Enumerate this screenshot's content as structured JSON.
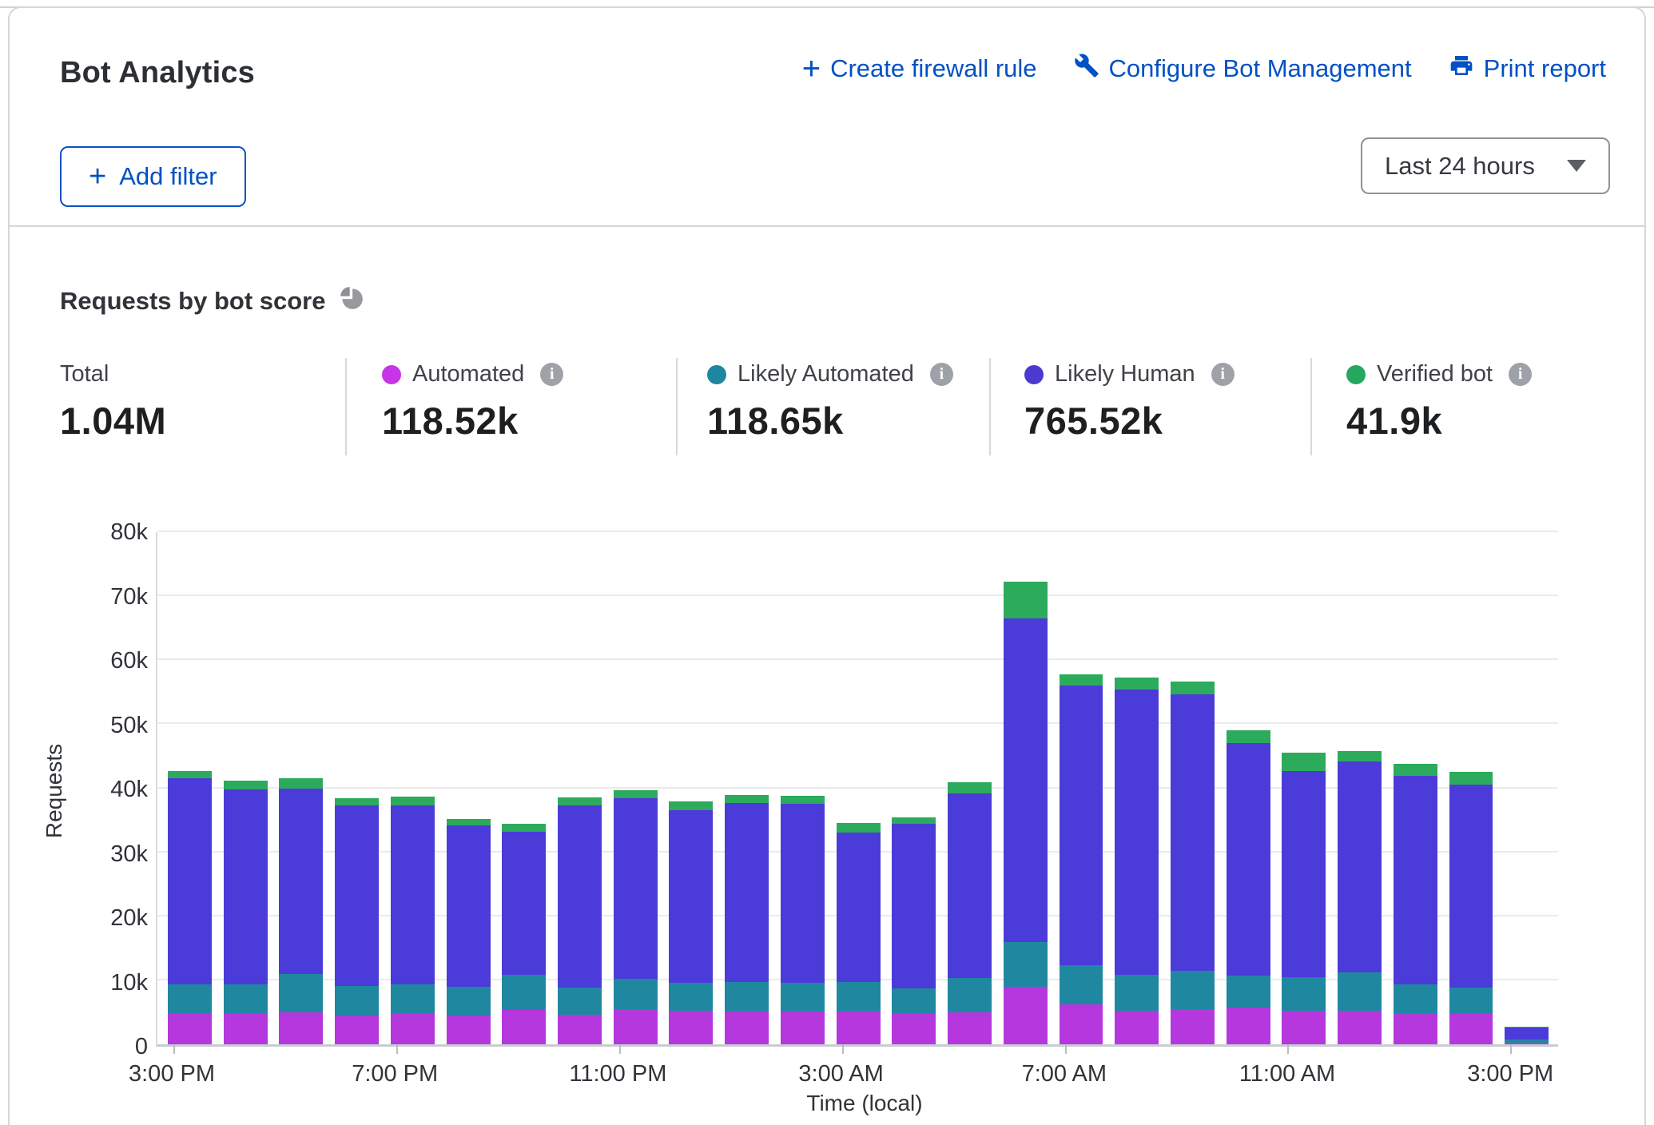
{
  "header": {
    "title": "Bot Analytics",
    "actions": [
      {
        "label": "Create firewall rule",
        "icon": "plus-icon"
      },
      {
        "label": "Configure Bot Management",
        "icon": "wrench-icon"
      },
      {
        "label": "Print report",
        "icon": "printer-icon"
      }
    ],
    "add_filter_label": "Add filter",
    "time_range_value": "Last 24 hours",
    "link_color": "#0051c3"
  },
  "section": {
    "title": "Requests by bot score",
    "icon": "pie-chart-icon"
  },
  "stats": {
    "total": {
      "label": "Total",
      "value": "1.04M"
    },
    "items": [
      {
        "label": "Automated",
        "value": "118.52k",
        "color": "#c835e8"
      },
      {
        "label": "Likely Automated",
        "value": "118.65k",
        "color": "#1d87a2"
      },
      {
        "label": "Likely Human",
        "value": "765.52k",
        "color": "#4a3ad0"
      },
      {
        "label": "Verified bot",
        "value": "41.9k",
        "color": "#24a85e"
      }
    ]
  },
  "chart_data": {
    "type": "bar",
    "stacked": true,
    "title": "Requests by bot score",
    "xlabel": "Time (local)",
    "ylabel": "Requests",
    "ylim": [
      0,
      80000
    ],
    "grid": true,
    "y_ticks": [
      "0",
      "10k",
      "20k",
      "30k",
      "40k",
      "50k",
      "60k",
      "70k",
      "80k"
    ],
    "categories": [
      "3:00 PM",
      "4:00 PM",
      "5:00 PM",
      "6:00 PM",
      "7:00 PM",
      "8:00 PM",
      "9:00 PM",
      "10:00 PM",
      "11:00 PM",
      "12:00 AM",
      "1:00 AM",
      "2:00 AM",
      "3:00 AM",
      "4:00 AM",
      "5:00 AM",
      "6:00 AM",
      "7:00 AM",
      "8:00 AM",
      "9:00 AM",
      "10:00 AM",
      "11:00 AM",
      "12:00 PM",
      "1:00 PM",
      "2:00 PM",
      "3:00 PM"
    ],
    "x_tick_indices": [
      0,
      4,
      8,
      12,
      16,
      20,
      24
    ],
    "x_tick_labels": [
      "3:00 PM",
      "7:00 PM",
      "11:00 PM",
      "3:00 AM",
      "7:00 AM",
      "11:00 AM",
      "3:00 PM"
    ],
    "unit": "k requests",
    "series": [
      {
        "name": "Automated",
        "color": "#b438dd",
        "values": [
          4.8,
          4.7,
          5.0,
          4.5,
          4.7,
          4.5,
          5.4,
          4.6,
          5.5,
          5.3,
          5.1,
          5.1,
          5.1,
          4.8,
          5.0,
          9.0,
          6.3,
          5.3,
          5.5,
          5.7,
          5.3,
          5.3,
          4.9,
          4.8,
          0.3
        ]
      },
      {
        "name": "Likely Automated",
        "color": "#1f87a0",
        "values": [
          4.5,
          4.6,
          6.0,
          4.6,
          4.6,
          4.5,
          5.4,
          4.3,
          4.7,
          4.3,
          4.6,
          4.5,
          4.6,
          3.9,
          5.4,
          7.0,
          6.0,
          5.6,
          6.0,
          5.0,
          5.2,
          5.9,
          4.5,
          4.1,
          0.4
        ]
      },
      {
        "name": "Likely Human",
        "color": "#4b3bd8",
        "values": [
          32.2,
          30.5,
          29.0,
          28.2,
          28.0,
          25.2,
          22.4,
          28.4,
          28.3,
          27.0,
          28.0,
          28.0,
          23.4,
          25.7,
          28.8,
          50.5,
          43.8,
          44.5,
          43.2,
          36.3,
          32.2,
          33.0,
          32.5,
          31.7,
          1.9
        ]
      },
      {
        "name": "Verified bot",
        "color": "#2cab5c",
        "values": [
          1.2,
          1.4,
          1.6,
          1.2,
          1.4,
          1.0,
          1.2,
          1.3,
          1.2,
          1.4,
          1.2,
          1.2,
          1.5,
          1.1,
          1.8,
          5.8,
          1.7,
          1.9,
          2.0,
          2.1,
          2.9,
          1.6,
          1.9,
          2.0,
          0.1
        ]
      }
    ]
  },
  "icons": {
    "plus": "+",
    "info": "i",
    "caret": "caret-down"
  }
}
